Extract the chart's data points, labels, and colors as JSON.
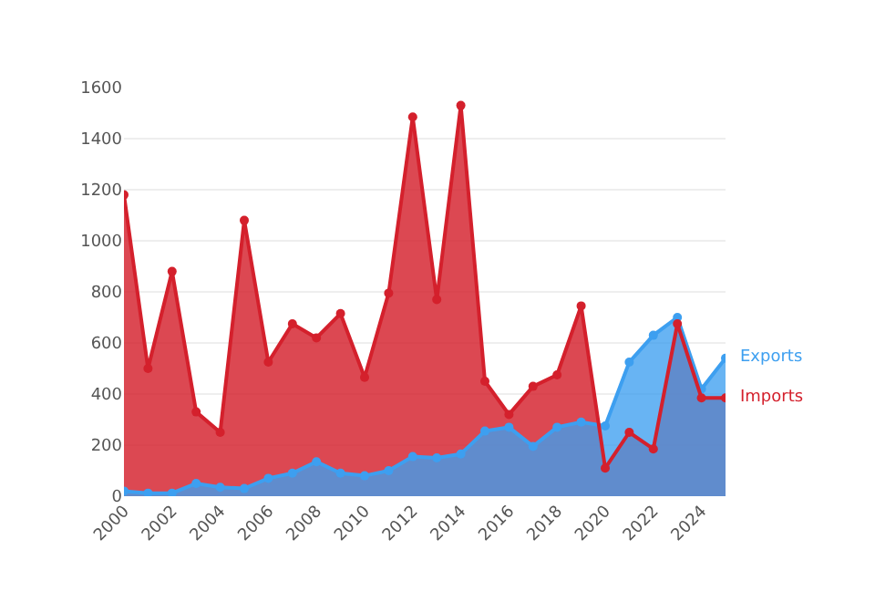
{
  "chart_data": {
    "type": "area",
    "x": [
      2000,
      2001,
      2002,
      2003,
      2004,
      2005,
      2006,
      2007,
      2008,
      2009,
      2010,
      2011,
      2012,
      2013,
      2014,
      2015,
      2016,
      2017,
      2018,
      2019,
      2020,
      2021,
      2022,
      2023,
      2024,
      2025
    ],
    "series": [
      {
        "name": "Imports",
        "color": "#d4202c",
        "values": [
          1180,
          500,
          880,
          330,
          250,
          1080,
          525,
          675,
          620,
          715,
          465,
          795,
          1485,
          770,
          1530,
          450,
          320,
          430,
          475,
          745,
          110,
          250,
          185,
          675,
          385,
          385
        ]
      },
      {
        "name": "Exports",
        "color": "#3d9ff0",
        "values": [
          20,
          12,
          12,
          50,
          35,
          30,
          70,
          90,
          135,
          90,
          80,
          100,
          155,
          150,
          165,
          255,
          270,
          195,
          270,
          290,
          275,
          525,
          630,
          700,
          420,
          540
        ]
      }
    ],
    "xlim": [
      2000,
      2025
    ],
    "xticks": [
      2000,
      2002,
      2004,
      2006,
      2008,
      2010,
      2012,
      2014,
      2016,
      2018,
      2020,
      2022,
      2024
    ],
    "ylim": [
      0,
      1600
    ],
    "yticks": [
      0,
      200,
      400,
      600,
      800,
      1000,
      1200,
      1400,
      1600
    ],
    "grid": "y",
    "marker": "circle",
    "line_style": "solid"
  }
}
